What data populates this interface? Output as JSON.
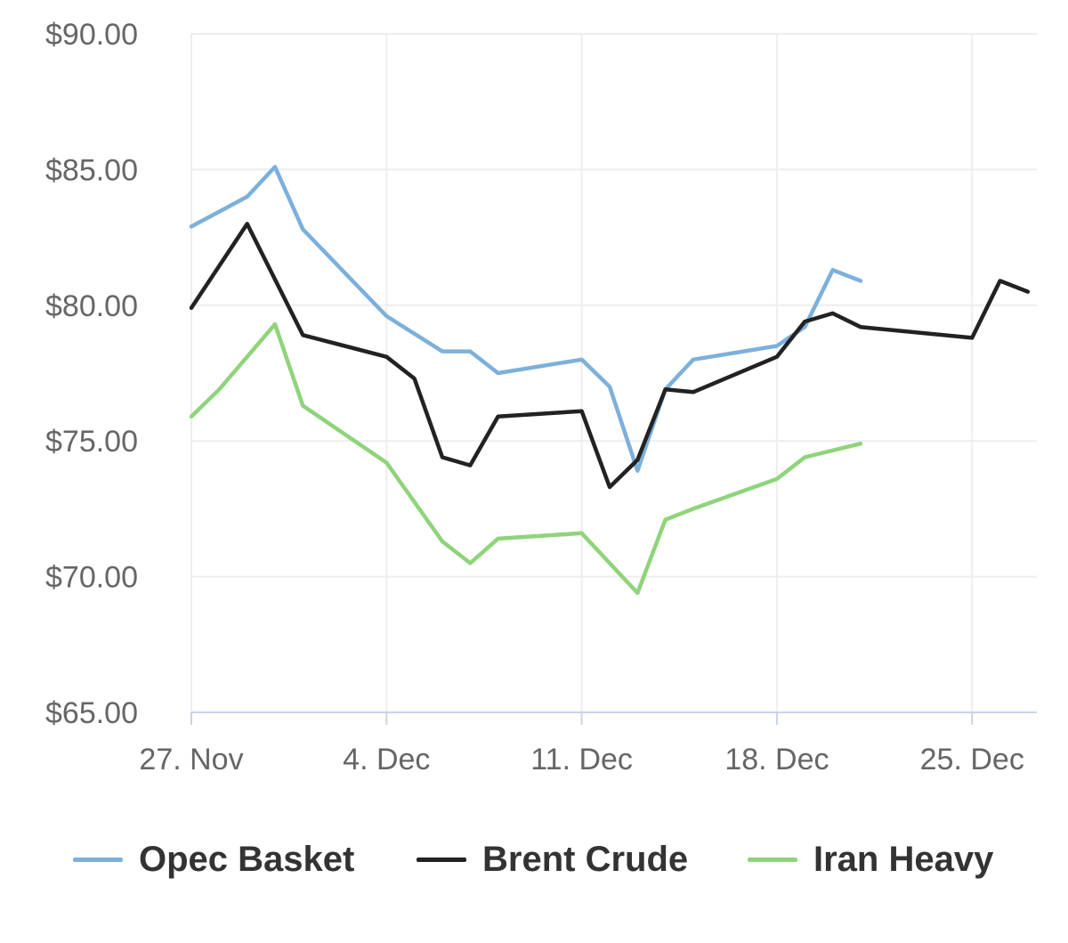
{
  "chart_data": {
    "type": "line",
    "x_axis": {
      "ticks": [
        {
          "date": "2017-11-27",
          "label": "27. Nov"
        },
        {
          "date": "2017-12-04",
          "label": "4. Dec"
        },
        {
          "date": "2017-12-11",
          "label": "11. Dec"
        },
        {
          "date": "2017-12-18",
          "label": "18. Dec"
        },
        {
          "date": "2017-12-25",
          "label": "25. Dec"
        }
      ],
      "range": [
        "2017-11-27",
        "2017-12-27"
      ]
    },
    "y_axis": {
      "ticks": [
        {
          "value": 90,
          "label": "$90.00"
        },
        {
          "value": 85,
          "label": "$85.00"
        },
        {
          "value": 80,
          "label": "$80.00"
        },
        {
          "value": 75,
          "label": "$75.00"
        },
        {
          "value": 70,
          "label": "$70.00"
        },
        {
          "value": 65,
          "label": "$65.00"
        }
      ],
      "range": [
        65,
        90
      ]
    },
    "grid": true,
    "legend_position": "bottom",
    "series": [
      {
        "name": "Opec Basket",
        "color": "#7cb0db",
        "points": [
          {
            "x": "2017-11-27",
            "y": 82.9
          },
          {
            "x": "2017-11-29",
            "y": 84.0
          },
          {
            "x": "2017-11-30",
            "y": 85.1
          },
          {
            "x": "2017-12-01",
            "y": 82.8
          },
          {
            "x": "2017-12-04",
            "y": 79.6
          },
          {
            "x": "2017-12-06",
            "y": 78.3
          },
          {
            "x": "2017-12-07",
            "y": 78.3
          },
          {
            "x": "2017-12-08",
            "y": 77.5
          },
          {
            "x": "2017-12-11",
            "y": 78.0
          },
          {
            "x": "2017-12-12",
            "y": 77.0
          },
          {
            "x": "2017-12-13",
            "y": 73.9
          },
          {
            "x": "2017-12-14",
            "y": 76.9
          },
          {
            "x": "2017-12-15",
            "y": 78.0
          },
          {
            "x": "2017-12-18",
            "y": 78.5
          },
          {
            "x": "2017-12-19",
            "y": 79.2
          },
          {
            "x": "2017-12-20",
            "y": 81.3
          },
          {
            "x": "2017-12-21",
            "y": 80.9
          }
        ]
      },
      {
        "name": "Brent Crude",
        "color": "#222222",
        "points": [
          {
            "x": "2017-11-27",
            "y": 79.9
          },
          {
            "x": "2017-11-29",
            "y": 83.0
          },
          {
            "x": "2017-12-01",
            "y": 78.9
          },
          {
            "x": "2017-12-04",
            "y": 78.1
          },
          {
            "x": "2017-12-05",
            "y": 77.3
          },
          {
            "x": "2017-12-06",
            "y": 74.4
          },
          {
            "x": "2017-12-07",
            "y": 74.1
          },
          {
            "x": "2017-12-08",
            "y": 75.9
          },
          {
            "x": "2017-12-11",
            "y": 76.1
          },
          {
            "x": "2017-12-12",
            "y": 73.3
          },
          {
            "x": "2017-12-13",
            "y": 74.3
          },
          {
            "x": "2017-12-14",
            "y": 76.9
          },
          {
            "x": "2017-12-15",
            "y": 76.8
          },
          {
            "x": "2017-12-18",
            "y": 78.1
          },
          {
            "x": "2017-12-19",
            "y": 79.4
          },
          {
            "x": "2017-12-20",
            "y": 79.7
          },
          {
            "x": "2017-12-21",
            "y": 79.2
          },
          {
            "x": "2017-12-25",
            "y": 78.8
          },
          {
            "x": "2017-12-26",
            "y": 80.9
          },
          {
            "x": "2017-12-27",
            "y": 80.5
          }
        ]
      },
      {
        "name": "Iran Heavy",
        "color": "#8fd47a",
        "points": [
          {
            "x": "2017-11-27",
            "y": 75.9
          },
          {
            "x": "2017-11-28",
            "y": 76.9
          },
          {
            "x": "2017-11-30",
            "y": 79.3
          },
          {
            "x": "2017-12-01",
            "y": 76.3
          },
          {
            "x": "2017-12-04",
            "y": 74.2
          },
          {
            "x": "2017-12-06",
            "y": 71.3
          },
          {
            "x": "2017-12-07",
            "y": 70.5
          },
          {
            "x": "2017-12-08",
            "y": 71.4
          },
          {
            "x": "2017-12-11",
            "y": 71.6
          },
          {
            "x": "2017-12-13",
            "y": 69.4
          },
          {
            "x": "2017-12-14",
            "y": 72.1
          },
          {
            "x": "2017-12-15",
            "y": 72.5
          },
          {
            "x": "2017-12-18",
            "y": 73.6
          },
          {
            "x": "2017-12-19",
            "y": 74.4
          },
          {
            "x": "2017-12-21",
            "y": 74.9
          }
        ]
      }
    ]
  }
}
